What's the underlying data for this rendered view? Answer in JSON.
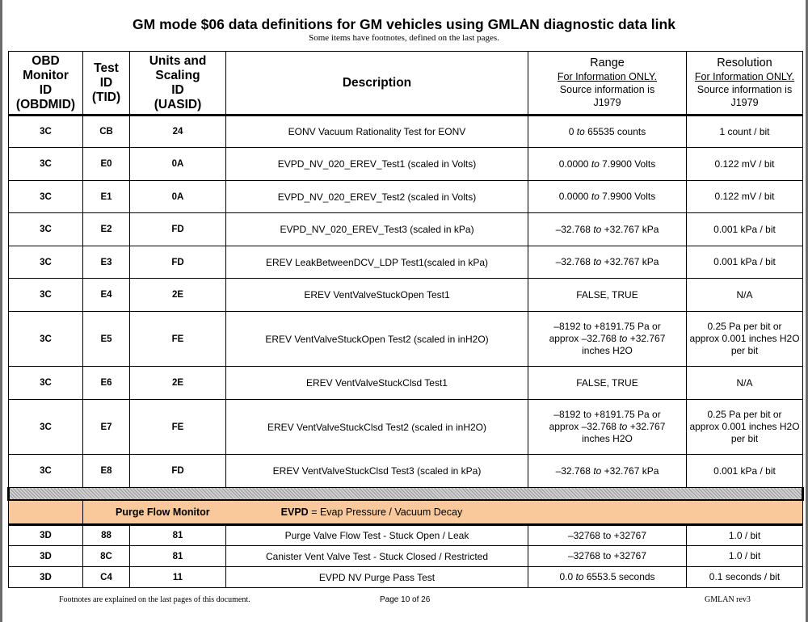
{
  "title": "GM mode $06 data definitions for GM vehicles using GMLAN diagnostic data link",
  "subtitle": "Some items have footnotes, defined on the last pages.",
  "headers": {
    "obdmid": [
      "OBD",
      "Monitor",
      "ID",
      "(OBDMID)"
    ],
    "tid": [
      "Test",
      "ID",
      "(TID)"
    ],
    "uasid": [
      "Units and",
      "Scaling",
      "ID",
      "(UASID)"
    ],
    "description": "Description",
    "range": {
      "title": "Range",
      "info": "For Information ONLY.",
      "src1": "Source information is",
      "src2": "J1979"
    },
    "resolution": {
      "title": "Resolution",
      "info": "For Information ONLY.",
      "src1": "Source information is",
      "src2": "J1979"
    }
  },
  "rows": [
    {
      "obdmid": "3C",
      "tid": "CB",
      "uasid": "24",
      "description": "EONV Vacuum Rationality Test for EONV",
      "range_a": "0",
      "to": "to",
      "range_b": "65535 counts",
      "resolution": "1 count / bit"
    },
    {
      "obdmid": "3C",
      "tid": "E0",
      "uasid": "0A",
      "description": "EVPD_NV_020_EREV_Test1 (scaled in Volts)",
      "range_a": "0.0000",
      "to": "to",
      "range_b": "7.9900 Volts",
      "resolution": "0.122 mV / bit"
    },
    {
      "obdmid": "3C",
      "tid": "E1",
      "uasid": "0A",
      "description": "EVPD_NV_020_EREV_Test2 (scaled in Volts)",
      "range_a": "0.0000",
      "to": "to",
      "range_b": "7.9900 Volts",
      "resolution": "0.122 mV / bit"
    },
    {
      "obdmid": "3C",
      "tid": "E2",
      "uasid": "FD",
      "description": "EVPD_NV_020_EREV_Test3 (scaled in kPa)",
      "range_a": "–32.768",
      "to": "to",
      "range_b": "+32.767 kPa",
      "resolution": "0.001 kPa / bit"
    },
    {
      "obdmid": "3C",
      "tid": "E3",
      "uasid": "FD",
      "description": "EREV LeakBetweenDCV_LDP Test1(scaled in kPa)",
      "range_a": "–32.768",
      "to": "to",
      "range_b": "+32.767 kPa",
      "resolution": "0.001 kPa / bit"
    },
    {
      "obdmid": "3C",
      "tid": "E4",
      "uasid": "2E",
      "description": "EREV VentValveStuckOpen Test1",
      "range_plain": "FALSE, TRUE",
      "resolution": "N/A"
    },
    {
      "obdmid": "3C",
      "tid": "E5",
      "uasid": "FE",
      "description": "EREV VentValveStuckOpen Test2 (scaled in inH2O)",
      "range_l1": "–8192 to +8191.75 Pa or",
      "range_l2a": "approx –32.768",
      "to": "to",
      "range_l2b": "+32.767",
      "range_l3": "inches H2O",
      "res_l1": "0.25 Pa per bit or",
      "res_l2": "approx 0.001 inches H2O",
      "res_l3": "per bit"
    },
    {
      "obdmid": "3C",
      "tid": "E6",
      "uasid": "2E",
      "description": "EREV VentValveStuckClsd Test1",
      "range_plain": "FALSE, TRUE",
      "resolution": "N/A"
    },
    {
      "obdmid": "3C",
      "tid": "E7",
      "uasid": "FE",
      "description": "EREV VentValveStuckClsd Test2 (scaled in inH2O)",
      "range_l1": "–8192 to +8191.75 Pa or",
      "range_l2a": "approx –32.768",
      "to": "to",
      "range_l2b": "+32.767",
      "range_l3": "inches H2O",
      "res_l1": "0.25 Pa per bit or",
      "res_l2": "approx 0.001 inches H2O",
      "res_l3": "per bit"
    },
    {
      "obdmid": "3C",
      "tid": "E8",
      "uasid": "FD",
      "description": "EREV VentValveStuckClsd Test3 (scaled in kPa)",
      "range_a": "–32.768",
      "to": "to",
      "range_b": "+32.767 kPa",
      "resolution": "0.001 kPa / bit"
    }
  ],
  "section": {
    "label": "Purge Flow Monitor",
    "abbr": "EVPD",
    "note": " = Evap Pressure / Vacuum Decay"
  },
  "rows2": [
    {
      "obdmid": "3D",
      "tid": "88",
      "uasid": "81",
      "description": "Purge Valve Flow Test - Stuck Open / Leak",
      "range_plain": "–32768 to +32767",
      "resolution": "1.0 / bit"
    },
    {
      "obdmid": "3D",
      "tid": "8C",
      "uasid": "81",
      "description": "Canister Vent Valve Test - Stuck Closed / Restricted",
      "range_plain": "–32768 to +32767",
      "resolution": "1.0 / bit"
    },
    {
      "obdmid": "3D",
      "tid": "C4",
      "uasid": "11",
      "description": "EVPD NV Purge Pass Test",
      "range_a": "0.0",
      "to": "to",
      "range_b": "6553.5 seconds",
      "resolution": "0.1 seconds / bit"
    }
  ],
  "footer": {
    "left": "Footnotes are explained on the last pages of this document.",
    "center": "Page 10 of 26",
    "right": "GMLAN  rev3"
  }
}
